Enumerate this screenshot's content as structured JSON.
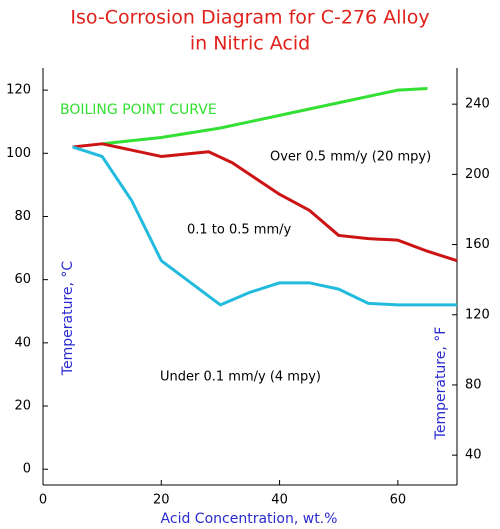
{
  "chart_data": {
    "type": "line",
    "title": [
      "Iso-Corrosion Diagram for C-276 Alloy",
      "in Nitric Acid"
    ],
    "x_label": "Acid Concentration, wt.%",
    "y_label": "Temperature, °C",
    "y2_label": "Temperature, °F",
    "xlim": [
      0,
      70
    ],
    "xticks": [
      0,
      20,
      40,
      60
    ],
    "ylim": [
      -5,
      127
    ],
    "yticks": [
      0,
      20,
      40,
      60,
      80,
      100,
      120
    ],
    "y2lim": [
      23,
      260.6
    ],
    "y2ticks": [
      40,
      80,
      120,
      160,
      200,
      240
    ],
    "annotations": [
      "Over 0.5 mm/y (20 mpy)",
      "0.1 to 0.5 mm/y",
      "Under 0.1 mm/y (4 mpy)"
    ],
    "series": [
      {
        "name": "BOILING POINT CURVE",
        "color": "#33e033",
        "x": [
          10,
          20,
          30,
          40,
          50,
          60,
          65
        ],
        "values": [
          103,
          105,
          108,
          112,
          116,
          120,
          120.5
        ]
      },
      {
        "color": "#cc1414",
        "x": [
          5,
          10,
          20,
          28,
          32,
          40,
          45,
          50,
          55,
          60,
          65,
          70
        ],
        "values": [
          102,
          103,
          99,
          100.5,
          97,
          87,
          82,
          74,
          73,
          72.5,
          69,
          66
        ]
      },
      {
        "color": "#22bbdd",
        "x": [
          5,
          10,
          15,
          20,
          25,
          30,
          35,
          40,
          45,
          50,
          55,
          60,
          70
        ],
        "values": [
          102,
          99,
          85,
          66,
          59,
          52,
          56,
          59,
          59,
          57,
          52.5,
          52,
          52
        ]
      }
    ]
  }
}
